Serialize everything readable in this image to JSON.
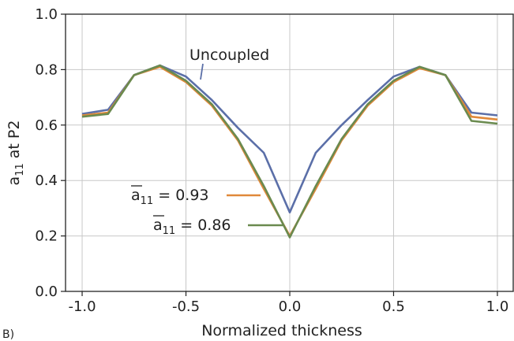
{
  "chart_data": {
    "type": "line",
    "title": "",
    "xlabel": "Normalized thickness",
    "ylabel": "a11 at P2",
    "ylabel_main": "a",
    "ylabel_sub": "11",
    "ylabel_rest": " at P2",
    "xlim": [
      -1.08,
      1.08
    ],
    "ylim": [
      0.0,
      1.0
    ],
    "grid": true,
    "xticks": [
      -1.0,
      -0.5,
      0.0,
      0.5,
      1.0
    ],
    "xtick_labels": [
      "-1.0",
      "-0.5",
      "0.0",
      "0.5",
      "1.0"
    ],
    "yticks": [
      0.0,
      0.2,
      0.4,
      0.6,
      0.8,
      1.0
    ],
    "ytick_labels": [
      "0.0",
      "0.2",
      "0.4",
      "0.6",
      "0.8",
      "1.0"
    ],
    "x": [
      -1.0,
      -0.875,
      -0.75,
      -0.625,
      -0.5,
      -0.375,
      -0.25,
      -0.125,
      0.0,
      0.125,
      0.25,
      0.375,
      0.5,
      0.625,
      0.75,
      0.875,
      1.0
    ],
    "series": [
      {
        "name": "Uncoupled",
        "color": "#5b6fa8",
        "values": [
          0.64,
          0.655,
          0.78,
          0.815,
          0.775,
          0.69,
          0.59,
          0.5,
          0.285,
          0.5,
          0.6,
          0.69,
          0.775,
          0.81,
          0.78,
          0.645,
          0.635
        ]
      },
      {
        "name": "a11 = 0.93",
        "color": "#e0893a",
        "values": [
          0.635,
          0.645,
          0.78,
          0.81,
          0.755,
          0.67,
          0.545,
          0.37,
          0.2,
          0.37,
          0.545,
          0.67,
          0.755,
          0.805,
          0.78,
          0.63,
          0.62
        ]
      },
      {
        "name": "a11 = 0.86",
        "color": "#6a8a4f",
        "values": [
          0.63,
          0.64,
          0.78,
          0.815,
          0.76,
          0.675,
          0.55,
          0.38,
          0.195,
          0.38,
          0.55,
          0.675,
          0.76,
          0.81,
          0.78,
          0.615,
          0.605
        ]
      }
    ],
    "annotations": [
      {
        "text": "Uncoupled"
      },
      {
        "main": "a",
        "sub": "11",
        "value": " = 0.93"
      },
      {
        "main": "a",
        "sub": "11",
        "value": " = 0.86"
      }
    ]
  },
  "panel_label": "B)"
}
